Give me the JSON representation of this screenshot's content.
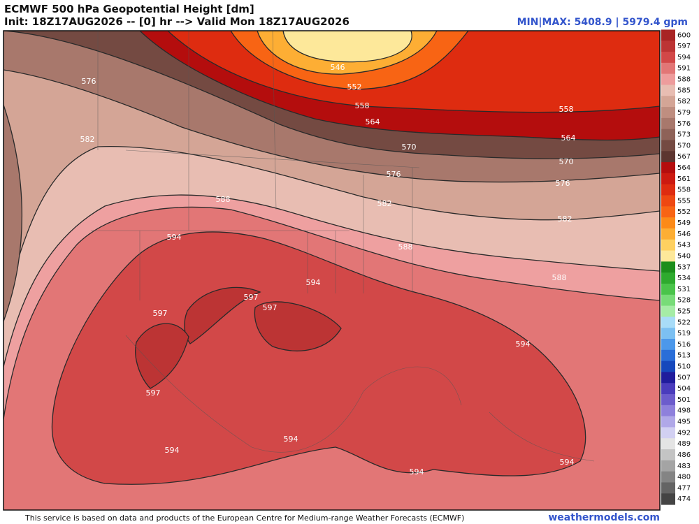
{
  "header": {
    "title": "ECMWF 500 hPa Geopotential Height [dm]",
    "init": "Init: 18Z17AUG2026 -- [0] hr --> Valid Mon 18Z17AUG2026",
    "minmax": "MIN|MAX: 5408.9 | 5979.4 gpm"
  },
  "contour_labels": [
    576,
    582,
    588,
    594,
    597,
    597,
    597,
    597,
    594,
    594,
    594,
    594,
    594,
    594,
    588,
    582,
    576,
    570,
    564,
    558,
    552,
    546,
    558,
    564,
    570,
    576,
    582,
    588
  ],
  "colorbar": {
    "levels": [
      600,
      597,
      594,
      591,
      588,
      585,
      582,
      579,
      576,
      573,
      570,
      567,
      564,
      561,
      558,
      555,
      552,
      549,
      546,
      543,
      540,
      537,
      534,
      531,
      528,
      525,
      522,
      519,
      516,
      513,
      510,
      507,
      504,
      501,
      498,
      495,
      492,
      489,
      486,
      483,
      480,
      477,
      474
    ],
    "colors": [
      "#a82424",
      "#bc3434",
      "#d24848",
      "#e27676",
      "#ee9c9c",
      "#e8bdb2",
      "#d4a596",
      "#bf8e80",
      "#a8786c",
      "#8e6258",
      "#744a42",
      "#5c3530",
      "#b40d0d",
      "#cc1a10",
      "#de2c10",
      "#ee4812",
      "#f86414",
      "#fc8a18",
      "#fdae34",
      "#fed060",
      "#fde89a",
      "#1c8e1c",
      "#2eaa2e",
      "#4ac44a",
      "#78dc78",
      "#a6eca6",
      "#a8dcf8",
      "#7cc0f2",
      "#4c98ea",
      "#2a6ed8",
      "#1648bc",
      "#201c9c",
      "#4a3cbc",
      "#6c5ccc",
      "#8e80dc",
      "#b0a8e8",
      "#d2d0f2",
      "#e4e4e4",
      "#c4c4c4",
      "#a4a4a4",
      "#848484",
      "#646464",
      "#444444"
    ]
  },
  "footer": {
    "note": "This service is based on data and products of the European Centre for Medium-range Weather Forecasts (ECMWF)",
    "site": "weathermodels.com"
  }
}
